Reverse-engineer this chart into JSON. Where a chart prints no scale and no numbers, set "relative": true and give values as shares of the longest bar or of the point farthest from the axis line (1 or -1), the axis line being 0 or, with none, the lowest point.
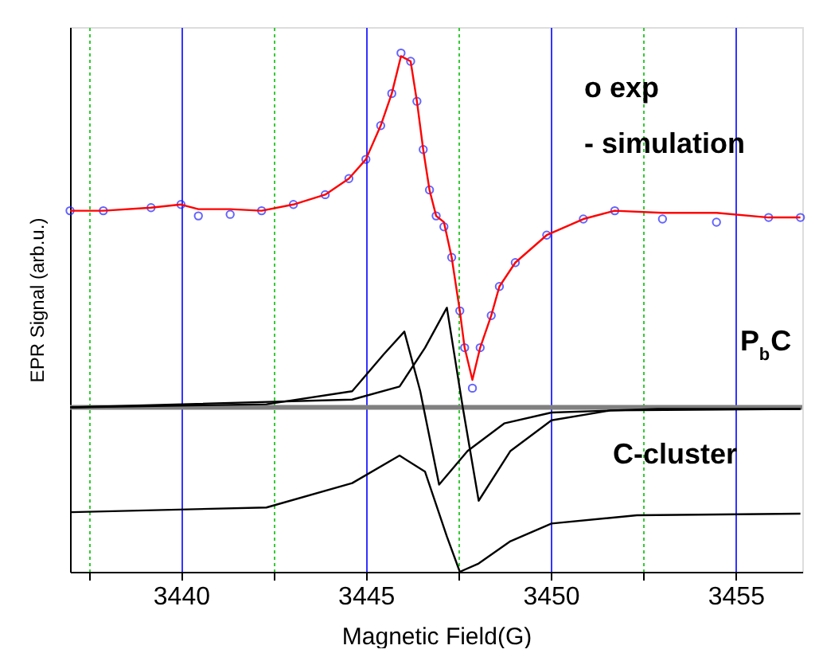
{
  "chart_data": {
    "type": "line",
    "relative": true,
    "xlabel": "Magnetic Field(G)",
    "ylabel": "EPR Signal (arb.u.)",
    "xlim": [
      3437.0,
      3456.8
    ],
    "xticks": [
      {
        "value": 3437.5,
        "label": null
      },
      3440,
      {
        "value": 3442.5,
        "label": null
      },
      3445,
      {
        "value": 3447.5,
        "label": null
      },
      3450,
      {
        "value": 3452.5,
        "label": null
      },
      3455
    ],
    "grid": "x",
    "ref_lines": [
      {
        "axis": "y",
        "value": 0.317,
        "color": "#808080"
      }
    ],
    "series": [
      {
        "type": "line",
        "color": "#000000",
        "x": [
          3437.0,
          3442.31,
          3444.63,
          3445.48,
          3446.04,
          3446.47,
          3446.98,
          3447.75,
          3448.74,
          3450.02,
          3452.89,
          3456.75
        ],
        "values": [
          0.317,
          0.323,
          0.348,
          0.419,
          0.463,
          0.348,
          0.168,
          0.233,
          0.286,
          0.307,
          0.314,
          0.314
        ]
      },
      {
        "type": "line",
        "color": "#000000",
        "x": [
          3437.0,
          3444.63,
          3445.91,
          3446.6,
          3447.19,
          3447.62,
          3448.05,
          3448.91,
          3450.02,
          3451.61,
          3456.75
        ],
        "values": [
          0.317,
          0.332,
          0.357,
          0.432,
          0.509,
          0.317,
          0.137,
          0.233,
          0.292,
          0.311,
          0.314
        ]
      },
      {
        "type": "line",
        "color": "#000000",
        "x": [
          3437.04,
          3442.31,
          3444.63,
          3445.91,
          3446.6,
          3447.19,
          3447.54,
          3448.05,
          3448.91,
          3450.02,
          3452.33,
          3456.75
        ],
        "values": [
          0.115,
          0.124,
          0.171,
          0.224,
          0.193,
          0.068,
          0.0,
          0.016,
          0.059,
          0.093,
          0.109,
          0.112
        ]
      },
      {
        "type": "scatter",
        "marker": "circle",
        "color": "#2222ff",
        "x": [
          3437.0,
          3437.9,
          3439.19,
          3440.0,
          3440.47,
          3441.33,
          3442.18,
          3443.04,
          3443.9,
          3444.54,
          3445.0,
          3445.4,
          3445.7,
          3445.95,
          3446.21,
          3446.38,
          3446.55,
          3446.72,
          3446.9,
          3447.11,
          3447.32,
          3447.54,
          3447.67,
          3447.88,
          3448.09,
          3448.39,
          3448.61,
          3449.04,
          3449.89,
          3450.88,
          3451.73,
          3453.02,
          3454.48,
          3455.89,
          3456.75
        ],
        "values": [
          0.696,
          0.696,
          0.702,
          0.708,
          0.686,
          0.689,
          0.696,
          0.708,
          0.727,
          0.758,
          0.795,
          0.86,
          0.922,
          1.0,
          0.984,
          0.907,
          0.814,
          0.736,
          0.686,
          0.665,
          0.606,
          0.503,
          0.432,
          0.354,
          0.432,
          0.494,
          0.55,
          0.596,
          0.649,
          0.68,
          0.696,
          0.68,
          0.674,
          0.683,
          0.683
        ]
      },
      {
        "type": "line",
        "color": "#ff0000",
        "x": [
          3437.0,
          3437.9,
          3439.19,
          3440.0,
          3440.47,
          3441.33,
          3442.18,
          3443.04,
          3443.9,
          3444.54,
          3445.0,
          3445.4,
          3445.7,
          3445.95,
          3446.21,
          3446.38,
          3446.55,
          3446.72,
          3446.9,
          3447.11,
          3447.32,
          3447.54,
          3447.67,
          3447.88,
          3448.09,
          3448.39,
          3448.61,
          3449.04,
          3449.89,
          3450.88,
          3451.73,
          3453.02,
          3454.48,
          3455.89,
          3456.75
        ],
        "values": [
          0.696,
          0.696,
          0.702,
          0.708,
          0.699,
          0.699,
          0.696,
          0.708,
          0.727,
          0.758,
          0.795,
          0.86,
          0.922,
          0.994,
          0.984,
          0.907,
          0.814,
          0.736,
          0.686,
          0.674,
          0.606,
          0.503,
          0.432,
          0.37,
          0.432,
          0.494,
          0.55,
          0.596,
          0.649,
          0.68,
          0.696,
          0.692,
          0.692,
          0.683,
          0.683
        ]
      }
    ],
    "annotations": [
      "o exp",
      "- simulation",
      "P$_{b}$C",
      "C-cluster"
    ]
  }
}
